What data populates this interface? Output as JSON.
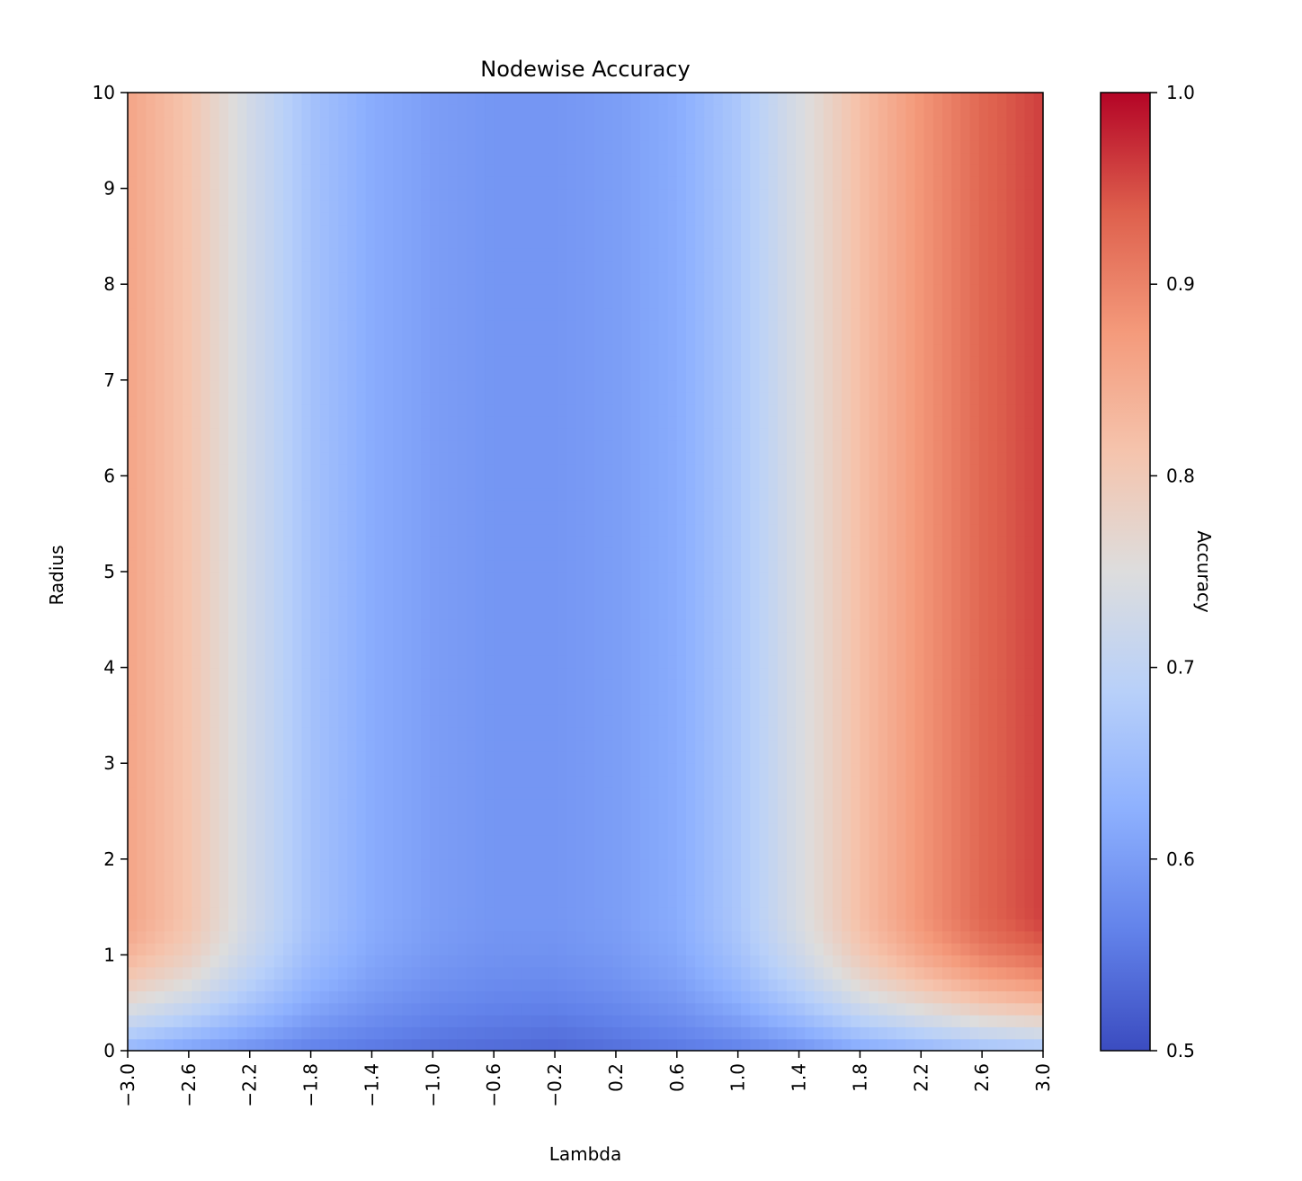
{
  "chart_data": {
    "type": "heatmap",
    "title": "Nodewise Accuracy",
    "xlabel": "Lambda",
    "ylabel": "Radius",
    "xlim": [
      -3.0,
      3.0
    ],
    "ylim": [
      0,
      10
    ],
    "x_ticks": [
      "−3.0",
      "−2.6",
      "−2.2",
      "−1.8",
      "−1.4",
      "−1.0",
      "−0.6",
      "−0.2",
      "0.2",
      "0.6",
      "1.0",
      "1.4",
      "1.8",
      "2.2",
      "2.6",
      "3.0"
    ],
    "x_tick_values": [
      -3.0,
      -2.6,
      -2.2,
      -1.8,
      -1.4,
      -1.0,
      -0.6,
      -0.2,
      0.2,
      0.6,
      1.0,
      1.4,
      1.8,
      2.2,
      2.6,
      3.0
    ],
    "y_ticks": [
      "0",
      "1",
      "2",
      "3",
      "4",
      "5",
      "6",
      "7",
      "8",
      "9",
      "10"
    ],
    "y_tick_values": [
      0,
      1,
      2,
      3,
      4,
      5,
      6,
      7,
      8,
      9,
      10
    ],
    "colormap": "coolwarm",
    "colorbar": {
      "label": "Accuracy",
      "range": [
        0.5,
        1.0
      ],
      "ticks": [
        "0.5",
        "0.6",
        "0.7",
        "0.8",
        "0.9",
        "1.0"
      ],
      "tick_values": [
        0.5,
        0.6,
        0.7,
        0.8,
        0.9,
        1.0
      ]
    },
    "grid": false,
    "z_profile_by_lambda": {
      "lambda": [
        -3.0,
        -2.6,
        -2.2,
        -1.8,
        -1.4,
        -1.0,
        -0.6,
        -0.2,
        0.2,
        0.6,
        1.0,
        1.4,
        1.8,
        2.2,
        2.6,
        3.0
      ],
      "accuracy_at_radius_5": [
        0.86,
        0.81,
        0.73,
        0.66,
        0.62,
        0.6,
        0.59,
        0.59,
        0.6,
        0.62,
        0.67,
        0.74,
        0.82,
        0.88,
        0.93,
        0.96
      ],
      "accuracy_at_radius_0": [
        0.63,
        0.6,
        0.58,
        0.56,
        0.55,
        0.54,
        0.535,
        0.53,
        0.54,
        0.55,
        0.56,
        0.58,
        0.61,
        0.63,
        0.65,
        0.66
      ]
    }
  }
}
